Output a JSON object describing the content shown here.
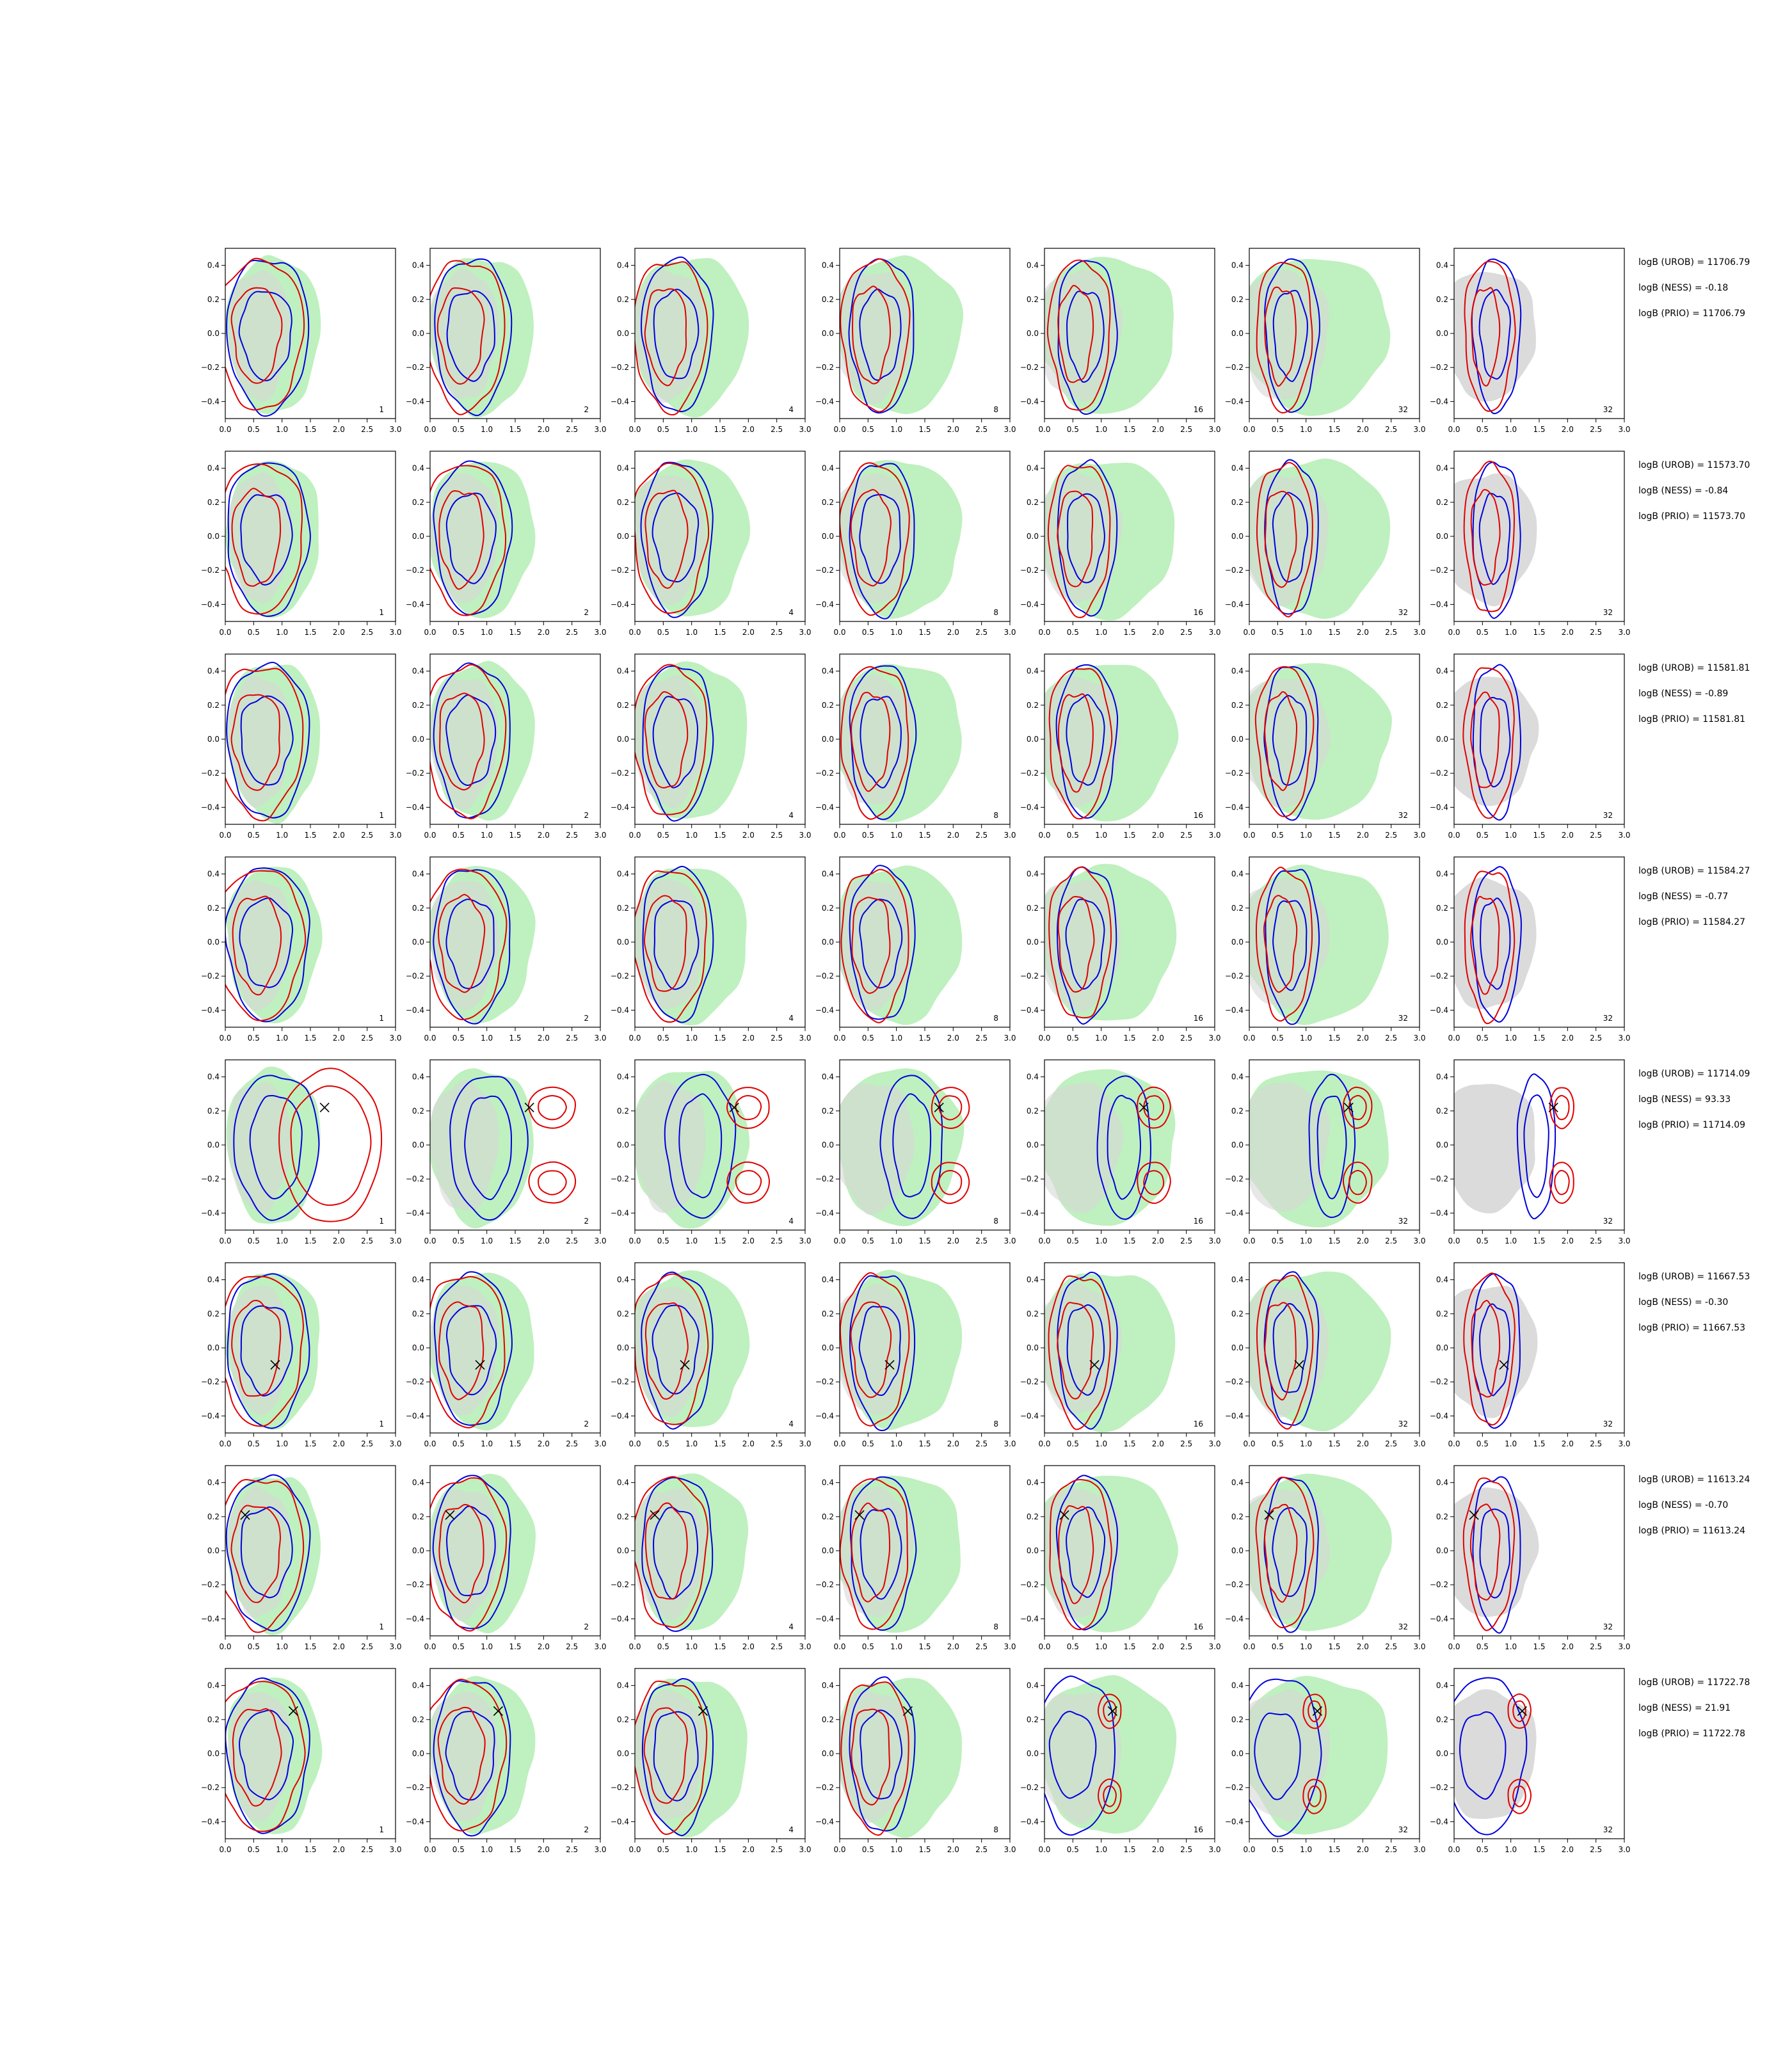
{
  "axes": {
    "x_ticks": [
      "0.0",
      "0.5",
      "1.0",
      "1.5",
      "2.0",
      "2.5",
      "3.0"
    ],
    "y_ticks": [
      "0.4",
      "0.2",
      "0.0",
      "−0.2",
      "−0.4"
    ],
    "xlim": [
      0,
      3
    ],
    "ylim": [
      -0.5,
      0.5
    ]
  },
  "colors": {
    "green_fill": "#bff0bf",
    "grey_fill": "#d7d7d7",
    "blue": "#0000dd",
    "red": "#e00000",
    "marker": "#000000"
  },
  "panel_labels": [
    "1",
    "2",
    "4",
    "8",
    "16",
    "32",
    "32"
  ],
  "rows": [
    {
      "stats": {
        "urob": "logB (UROB) = 11706.79",
        "ness": "logB (NESS) = -0.18",
        "prio": "logB (PRIO) = 11706.79"
      },
      "marker": null,
      "dist": "wide"
    },
    {
      "stats": {
        "urob": "logB (UROB) = 11573.70",
        "ness": "logB (NESS) = -0.84",
        "prio": "logB (PRIO) = 11573.70"
      },
      "marker": null,
      "dist": "wide"
    },
    {
      "stats": {
        "urob": "logB (UROB) = 11581.81",
        "ness": "logB (NESS) = -0.89",
        "prio": "logB (PRIO) = 11581.81"
      },
      "marker": null,
      "dist": "wide"
    },
    {
      "stats": {
        "urob": "logB (UROB) = 11584.27",
        "ness": "logB (NESS) = -0.77",
        "prio": "logB (PRIO) = 11584.27"
      },
      "marker": null,
      "dist": "wide"
    },
    {
      "stats": {
        "urob": "logB (UROB) = 11714.09",
        "ness": "logB (NESS) = 93.33",
        "prio": "logB (PRIO) = 11714.09"
      },
      "marker": [
        1.75,
        0.22
      ],
      "dist": "split"
    },
    {
      "stats": {
        "urob": "logB (UROB) = 11667.53",
        "ness": "logB (NESS) = -0.30",
        "prio": "logB (PRIO) = 11667.53"
      },
      "marker": [
        0.88,
        -0.1
      ],
      "dist": "wide"
    },
    {
      "stats": {
        "urob": "logB (UROB) = 11613.24",
        "ness": "logB (NESS) = -0.70",
        "prio": "logB (PRIO) = 11613.24"
      },
      "marker": [
        0.35,
        0.21
      ],
      "dist": "wide"
    },
    {
      "stats": {
        "urob": "logB (UROB) = 11722.78",
        "ness": "logB (NESS) = 21.91",
        "prio": "logB (PRIO) = 11722.78"
      },
      "marker": [
        1.2,
        0.25
      ],
      "dist": "twin"
    }
  ],
  "chart_data": {
    "type": "contour-grid",
    "rows": 8,
    "cols": 7,
    "xlim": [
      0,
      3
    ],
    "ylim": [
      -0.5,
      0.5
    ],
    "annotations": [
      "logB (UROB) = 11706.79",
      "logB (NESS) = -0.18",
      "logB (PRIO) = 11706.79",
      "logB (UROB) = 11573.70",
      "logB (NESS) = -0.84",
      "logB (PRIO) = 11573.70",
      "logB (UROB) = 11581.81",
      "logB (NESS) = -0.89",
      "logB (PRIO) = 11581.81",
      "logB (UROB) = 11584.27",
      "logB (NESS) = -0.77",
      "logB (PRIO) = 11584.27",
      "logB (UROB) = 11714.09",
      "logB (NESS) = 93.33",
      "logB (PRIO) = 11714.09",
      "logB (UROB) = 11667.53",
      "logB (NESS) = -0.30",
      "logB (PRIO) = 11667.53",
      "logB (UROB) = 11613.24",
      "logB (NESS) = -0.70",
      "logB (PRIO) = 11613.24",
      "logB (UROB) = 11722.78",
      "logB (NESS) = 21.91",
      "logB (PRIO) = 11722.78"
    ],
    "panel_labels": [
      "1",
      "2",
      "4",
      "8",
      "16",
      "32",
      "32"
    ],
    "markers": [
      null,
      null,
      null,
      null,
      [
        1.75,
        0.22
      ],
      [
        0.88,
        -0.1
      ],
      [
        0.35,
        0.21
      ],
      [
        1.2,
        0.25
      ]
    ]
  }
}
